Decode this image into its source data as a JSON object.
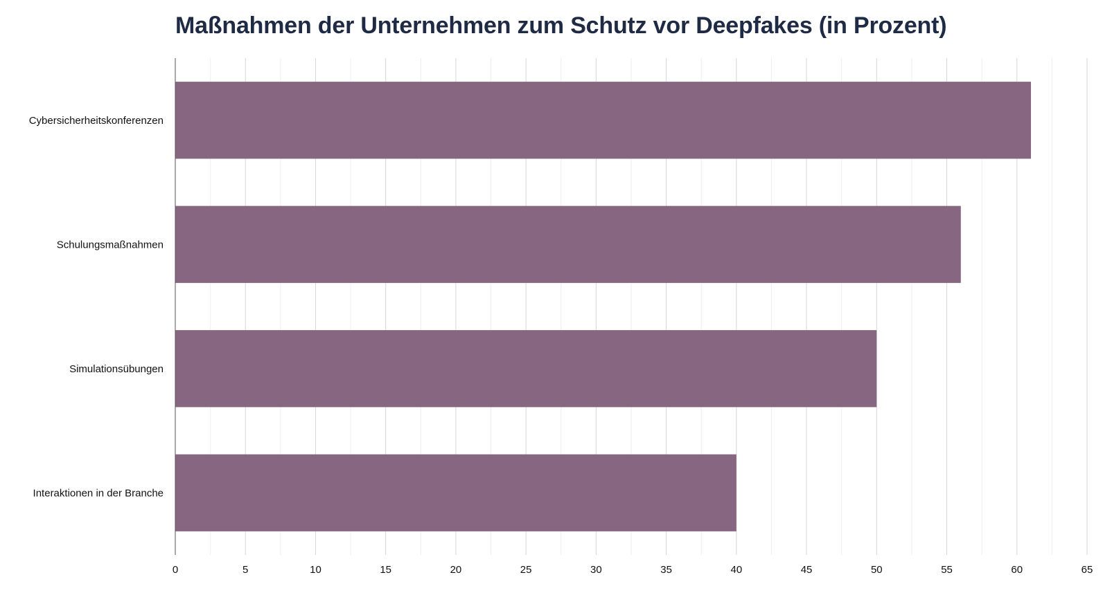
{
  "chart_data": {
    "type": "bar",
    "orientation": "horizontal",
    "title": "Maßnahmen der Unternehmen zum Schutz vor Deepfakes (in Prozent)",
    "xlabel": "",
    "ylabel": "",
    "categories": [
      "Cybersicherheitskonferenzen",
      "Schulungsmaßnahmen",
      "Simulationsübungen",
      "Interaktionen in der Branche"
    ],
    "values": [
      61,
      56,
      50,
      40
    ],
    "xlim": [
      0,
      65
    ],
    "xticks": [
      0,
      5,
      10,
      15,
      20,
      25,
      30,
      35,
      40,
      45,
      50,
      55,
      60,
      65
    ],
    "grid": true,
    "legend": "none",
    "bar_color": "#866680",
    "title_color": "#1f2a44"
  }
}
